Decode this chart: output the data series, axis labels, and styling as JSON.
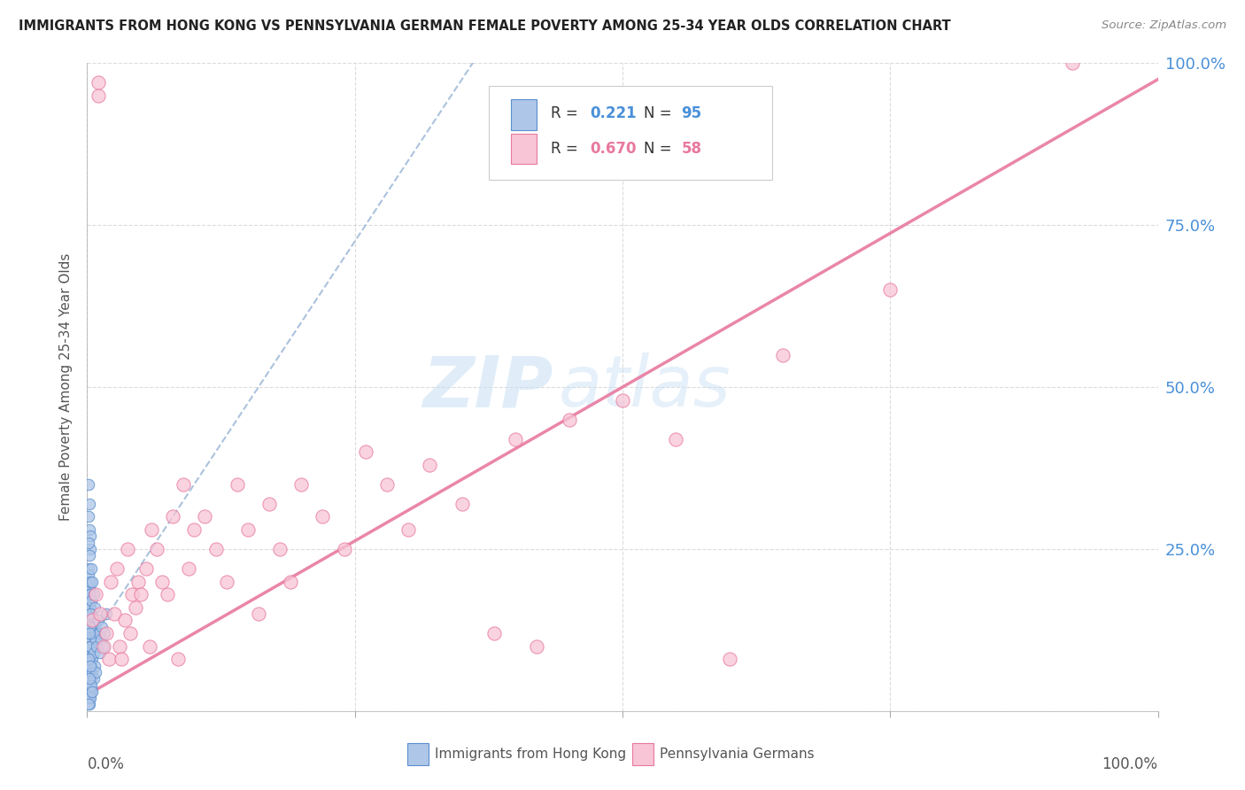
{
  "title": "IMMIGRANTS FROM HONG KONG VS PENNSYLVANIA GERMAN FEMALE POVERTY AMONG 25-34 YEAR OLDS CORRELATION CHART",
  "source": "Source: ZipAtlas.com",
  "ylabel": "Female Poverty Among 25-34 Year Olds",
  "legend_hk_r": "0.221",
  "legend_hk_n": "95",
  "legend_pg_r": "0.670",
  "legend_pg_n": "58",
  "legend_label_hk": "Immigrants from Hong Kong",
  "legend_label_pg": "Pennsylvania Germans",
  "watermark_zip": "ZIP",
  "watermark_atlas": "atlas",
  "hk_color": "#aec6e8",
  "hk_edge_color": "#5b8fcf",
  "pg_color": "#f7c5d5",
  "pg_edge_color": "#e8799f",
  "hk_trend_color": "#9db8d8",
  "pg_trend_color": "#e8799f",
  "tick_color": "#4a90d9",
  "hk_scatter_x": [
    0.001,
    0.001,
    0.001,
    0.001,
    0.001,
    0.001,
    0.001,
    0.001,
    0.001,
    0.001,
    0.001,
    0.001,
    0.001,
    0.001,
    0.001,
    0.001,
    0.001,
    0.001,
    0.001,
    0.001,
    0.002,
    0.002,
    0.002,
    0.002,
    0.002,
    0.002,
    0.002,
    0.002,
    0.002,
    0.002,
    0.002,
    0.002,
    0.002,
    0.002,
    0.002,
    0.003,
    0.003,
    0.003,
    0.003,
    0.003,
    0.003,
    0.003,
    0.003,
    0.003,
    0.004,
    0.004,
    0.004,
    0.004,
    0.004,
    0.004,
    0.005,
    0.005,
    0.005,
    0.005,
    0.006,
    0.006,
    0.006,
    0.007,
    0.007,
    0.008,
    0.008,
    0.009,
    0.01,
    0.011,
    0.012,
    0.013,
    0.014,
    0.015,
    0.016,
    0.018,
    0.001,
    0.001,
    0.002,
    0.002,
    0.003,
    0.003,
    0.004,
    0.005,
    0.006,
    0.007,
    0.001,
    0.002,
    0.002,
    0.003,
    0.004,
    0.005,
    0.003,
    0.002,
    0.001,
    0.002,
    0.001,
    0.002,
    0.001,
    0.003,
    0.002
  ],
  "hk_scatter_y": [
    0.14,
    0.16,
    0.17,
    0.15,
    0.13,
    0.12,
    0.11,
    0.1,
    0.09,
    0.08,
    0.18,
    0.2,
    0.22,
    0.19,
    0.21,
    0.07,
    0.06,
    0.05,
    0.04,
    0.03,
    0.15,
    0.13,
    0.17,
    0.11,
    0.19,
    0.08,
    0.06,
    0.04,
    0.03,
    0.02,
    0.14,
    0.16,
    0.12,
    0.1,
    0.18,
    0.14,
    0.16,
    0.1,
    0.08,
    0.06,
    0.12,
    0.18,
    0.2,
    0.04,
    0.13,
    0.15,
    0.07,
    0.05,
    0.17,
    0.03,
    0.14,
    0.12,
    0.08,
    0.06,
    0.13,
    0.09,
    0.05,
    0.12,
    0.07,
    0.11,
    0.06,
    0.1,
    0.14,
    0.12,
    0.09,
    0.11,
    0.13,
    0.1,
    0.12,
    0.15,
    0.3,
    0.35,
    0.28,
    0.32,
    0.25,
    0.27,
    0.22,
    0.2,
    0.18,
    0.16,
    0.02,
    0.01,
    0.03,
    0.02,
    0.04,
    0.03,
    0.15,
    0.13,
    0.01,
    0.12,
    0.26,
    0.24,
    0.08,
    0.07,
    0.05
  ],
  "pg_scatter_x": [
    0.005,
    0.008,
    0.01,
    0.01,
    0.012,
    0.015,
    0.018,
    0.02,
    0.022,
    0.025,
    0.028,
    0.03,
    0.032,
    0.035,
    0.038,
    0.04,
    0.042,
    0.045,
    0.048,
    0.05,
    0.055,
    0.058,
    0.06,
    0.065,
    0.07,
    0.075,
    0.08,
    0.085,
    0.09,
    0.095,
    0.1,
    0.11,
    0.12,
    0.13,
    0.14,
    0.15,
    0.16,
    0.17,
    0.18,
    0.19,
    0.2,
    0.22,
    0.24,
    0.26,
    0.28,
    0.3,
    0.32,
    0.35,
    0.38,
    0.4,
    0.42,
    0.45,
    0.5,
    0.55,
    0.6,
    0.65,
    0.75,
    0.92
  ],
  "pg_scatter_y": [
    0.14,
    0.18,
    0.95,
    0.97,
    0.15,
    0.1,
    0.12,
    0.08,
    0.2,
    0.15,
    0.22,
    0.1,
    0.08,
    0.14,
    0.25,
    0.12,
    0.18,
    0.16,
    0.2,
    0.18,
    0.22,
    0.1,
    0.28,
    0.25,
    0.2,
    0.18,
    0.3,
    0.08,
    0.35,
    0.22,
    0.28,
    0.3,
    0.25,
    0.2,
    0.35,
    0.28,
    0.15,
    0.32,
    0.25,
    0.2,
    0.35,
    0.3,
    0.25,
    0.4,
    0.35,
    0.28,
    0.38,
    0.32,
    0.12,
    0.42,
    0.1,
    0.45,
    0.48,
    0.42,
    0.08,
    0.55,
    0.65,
    1.0
  ],
  "xlim": [
    0.0,
    1.0
  ],
  "ylim": [
    0.0,
    1.0
  ],
  "yticks": [
    0.0,
    0.25,
    0.5,
    0.75,
    1.0
  ],
  "ytick_labels": [
    "",
    "25.0%",
    "50.0%",
    "75.0%",
    "100.0%"
  ],
  "xtick_bottom_left": "0.0%",
  "xtick_bottom_right": "100.0%"
}
